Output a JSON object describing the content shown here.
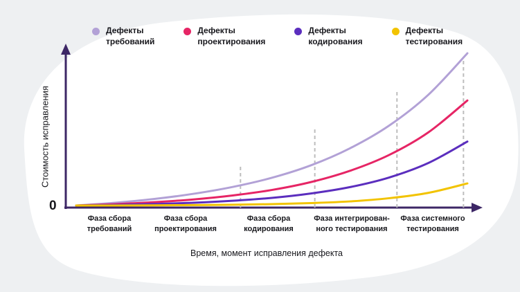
{
  "page": {
    "background": "#eef0f2",
    "blob_color": "#ffffff"
  },
  "legend": {
    "items": [
      {
        "label": "Дефекты\nтребований",
        "color": "#b2a1d6"
      },
      {
        "label": "Дефекты\nпроектирования",
        "color": "#e62565"
      },
      {
        "label": "Дефекты\nкодирования",
        "color": "#5b2ebe"
      },
      {
        "label": "Дефекты\nтестирования",
        "color": "#f2c300"
      }
    ]
  },
  "chart_data": {
    "type": "line",
    "title": "",
    "xlabel": "Время, момент исправления дефекта",
    "ylabel": "Стоимость исправления",
    "origin_label": "0",
    "x": [
      0,
      10,
      20,
      30,
      40,
      50,
      60,
      70,
      80,
      90,
      100
    ],
    "ylim": [
      0,
      100
    ],
    "grid": false,
    "legend_position": "top",
    "series": [
      {
        "name": "Дефекты требований",
        "color": "#b2a1d6",
        "values": [
          0,
          1.8,
          4.3,
          7.7,
          12.2,
          18.2,
          26.4,
          37.6,
          52.5,
          72.7,
          100
        ]
      },
      {
        "name": "Дефекты проектирования",
        "color": "#e62565",
        "values": [
          0,
          0.9,
          2.2,
          4.0,
          6.6,
          10.2,
          15.4,
          22.8,
          33.2,
          48,
          69
        ]
      },
      {
        "name": "Дефекты кодирования",
        "color": "#5b2ebe",
        "values": [
          0,
          0.4,
          1.0,
          1.8,
          3.1,
          5.0,
          7.9,
          12.1,
          18.4,
          27.9,
          42
        ]
      },
      {
        "name": "Дефекты тестирования",
        "color": "#f2c300",
        "values": [
          0,
          0,
          0.1,
          0.3,
          0.5,
          0.9,
          1.6,
          2.7,
          4.8,
          8.3,
          14.5
        ]
      }
    ],
    "phase_dividers": [
      {
        "x": 42,
        "top": 27
      },
      {
        "x": 61,
        "top": 51
      },
      {
        "x": 82,
        "top": 76
      },
      {
        "x": 99,
        "top": 96
      }
    ],
    "phases": [
      {
        "label": "Фаза сбора\nтребований"
      },
      {
        "label": "Фаза сбора\nпроектирования"
      },
      {
        "label": "Фаза сбора\nкодирования"
      },
      {
        "label": "Фаза интегрирован-\nного тестирования"
      },
      {
        "label": "Фаза системного\nтестирования"
      }
    ],
    "axis_color": "#3d2766",
    "divider_color": "#bdbdbd"
  }
}
